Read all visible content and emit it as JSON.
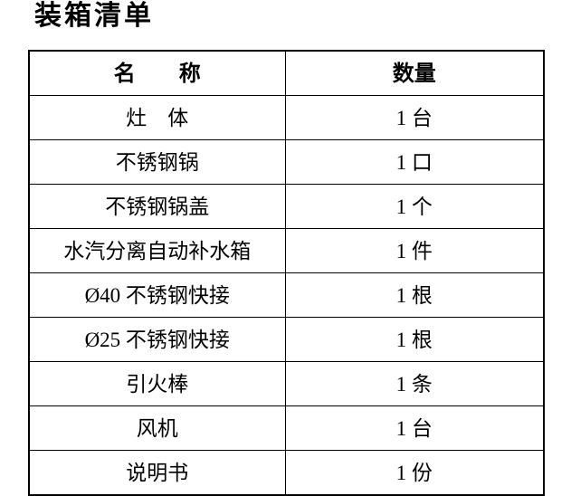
{
  "page": {
    "title": "装箱清单"
  },
  "colors": {
    "background": "#ffffff",
    "text": "#000000",
    "table_border": "#000000"
  },
  "table": {
    "headers": {
      "name": "名　　称",
      "qty": "数量"
    },
    "rows": [
      {
        "name": "灶　体",
        "qty": "1 台"
      },
      {
        "name": "不锈钢锅",
        "qty": "1 口"
      },
      {
        "name": "不锈钢锅盖",
        "qty": "1 个"
      },
      {
        "name": "水汽分离自动补水箱",
        "qty": "1 件"
      },
      {
        "name": "Ø40 不锈钢快接",
        "qty": "1 根"
      },
      {
        "name": "Ø25 不锈钢快接",
        "qty": "1 根"
      },
      {
        "name": "引火棒",
        "qty": "1 条"
      },
      {
        "name": "风机",
        "qty": "1 台"
      },
      {
        "name": "说明书",
        "qty": "1 份"
      }
    ]
  }
}
